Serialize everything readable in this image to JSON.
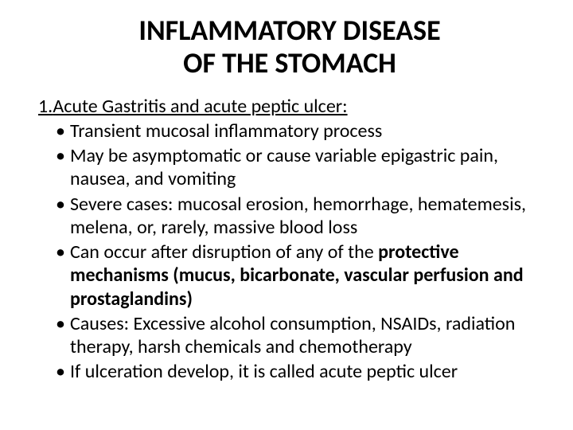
{
  "title": {
    "line1": "INFLAMMATORY DISEASE",
    "line2": "OF THE STOMACH",
    "fontsize": 36,
    "fontweight": 700,
    "color": "#000000",
    "align": "center"
  },
  "subheading": {
    "number": "1.",
    "text": "Acute Gastritis and acute peptic ulcer:",
    "fontsize": 24,
    "underline": true,
    "color": "#000000"
  },
  "bullets": {
    "fontsize": 24,
    "color": "#000000",
    "items": [
      {
        "plain": "Transient mucosal inflammatory process"
      },
      {
        "plain": "May be asymptomatic or cause variable epigastric pain, nausea, and vomiting"
      },
      {
        "plain": "Severe cases: mucosal erosion, hemorrhage, hematemesis, melena, or, rarely, massive blood loss"
      },
      {
        "lead": "Can occur after disruption of any of the ",
        "bold": "protective mechanisms (mucus, bicarbonate, vascular perfusion and prostaglandins)"
      },
      {
        "plain": "Causes: Excessive alcohol consumption, NSAIDs, radiation therapy, harsh chemicals and chemotherapy"
      },
      {
        "plain": "If ulceration develop, it is called acute peptic ulcer"
      }
    ]
  },
  "background_color": "#ffffff"
}
